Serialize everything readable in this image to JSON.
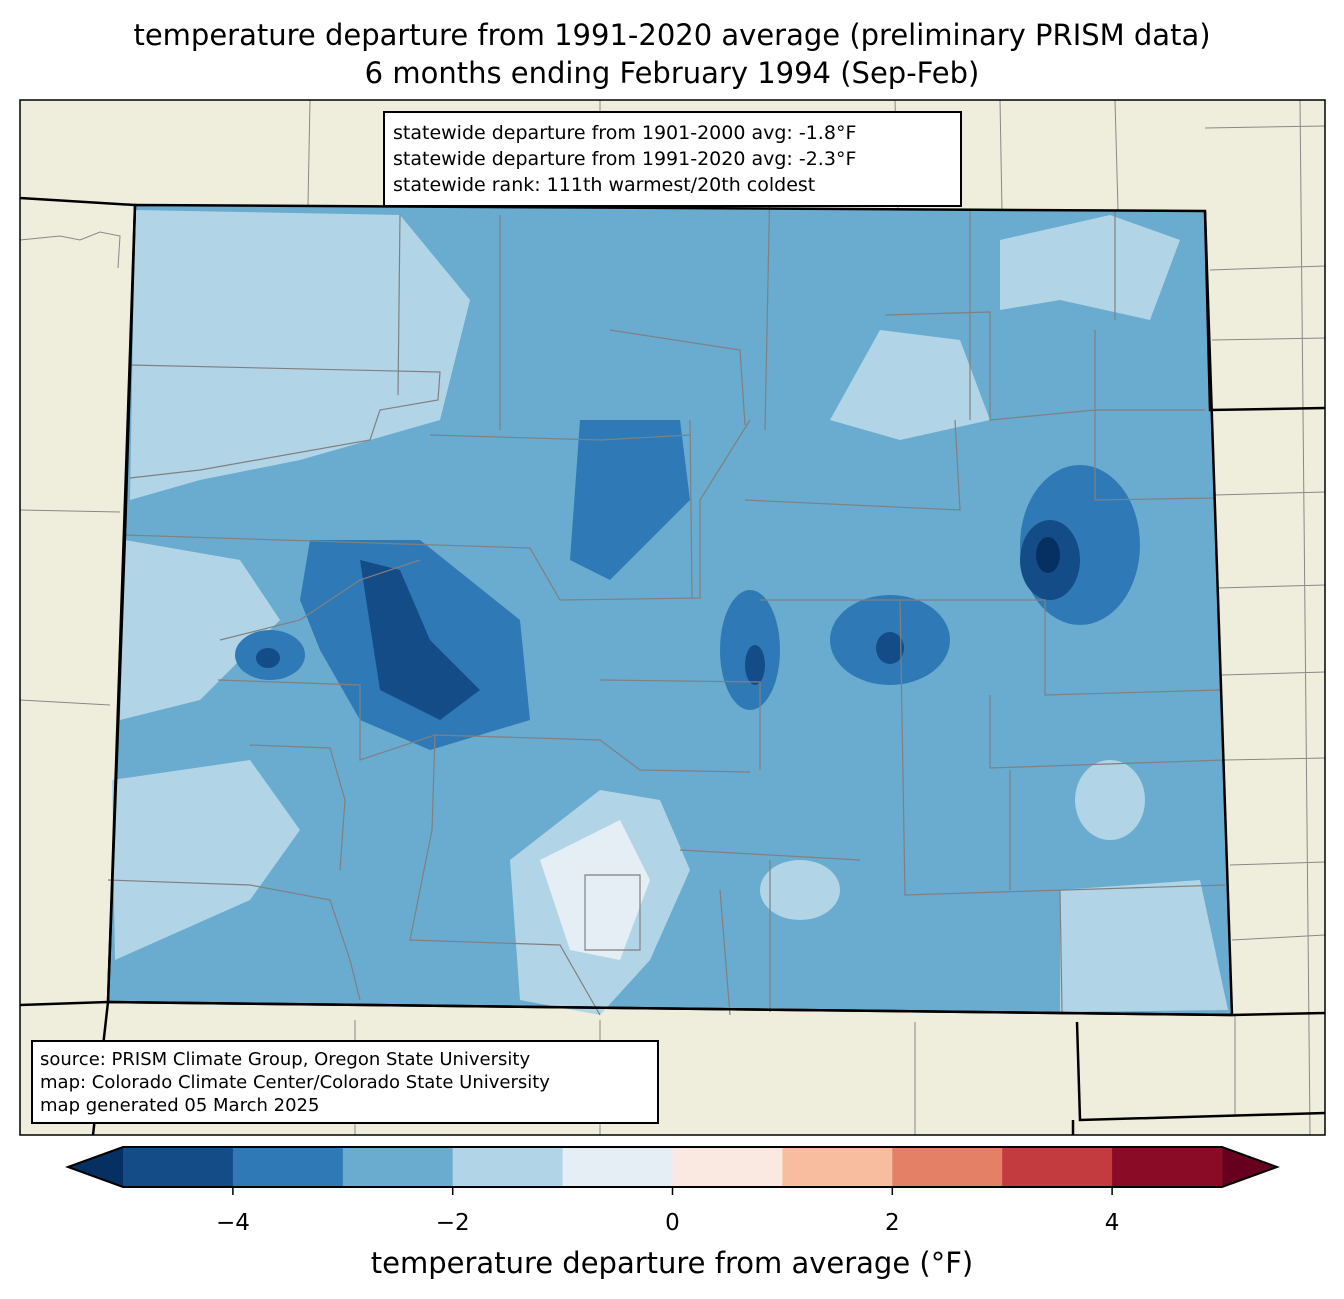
{
  "title": {
    "line1": "temperature departure from 1991-2020 average (preliminary PRISM data)",
    "line2": "6 months ending February 1994 (Sep-Feb)"
  },
  "stats_box": {
    "line1": "statewide departure from 1901-2000 avg: -1.8°F",
    "line2": "statewide departure from 1991-2020 avg: -2.3°F",
    "line3": "statewide rank: 111th warmest/20th coldest"
  },
  "source_box": {
    "line1": "source: PRISM Climate Group, Oregon State University",
    "line2": "map: Colorado Climate Center/Colorado State University",
    "line3": "map generated 05 March 2025"
  },
  "colorbar": {
    "label": "temperature departure from average (°F)",
    "min": -5,
    "max": 5,
    "bounds": [
      -5,
      -4,
      -3,
      -2,
      -1,
      0,
      1,
      2,
      3,
      4,
      5
    ],
    "colors": [
      "#144c87",
      "#2f7ab6",
      "#6aabd0",
      "#b1d5e7",
      "#e4eef4",
      "#f9e9e0",
      "#f8bd9f",
      "#e48066",
      "#c33a3f",
      "#8a0b25"
    ],
    "under_color": "#053061",
    "over_color": "#67001f",
    "ticks": [
      -4,
      -2,
      0,
      2,
      4
    ],
    "tick_labels": [
      "−4",
      "−2",
      "0",
      "2",
      "4"
    ]
  },
  "map_colors": {
    "land": "#efeedc",
    "county_line": "#808080"
  }
}
